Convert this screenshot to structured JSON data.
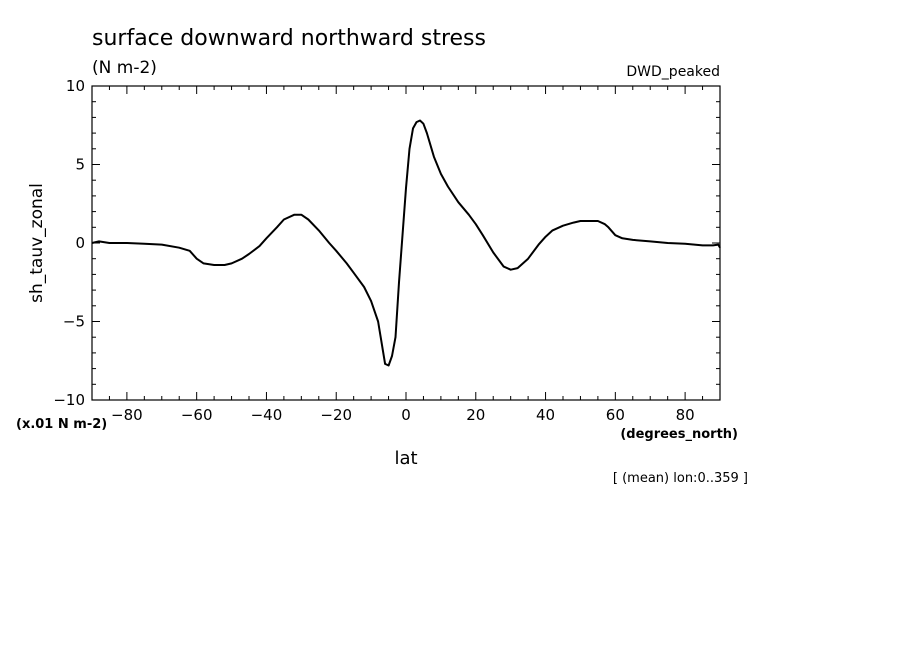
{
  "title": "surface downward northward stress",
  "units": "(N m-2)",
  "tag": "DWD_peaked",
  "footnote": "[ (mean) lon:0..359 ]",
  "chart_data": {
    "type": "line",
    "title": "surface downward northward stress",
    "xlabel": "lat",
    "ylabel": "sh_tauv_zonal",
    "x_units": "(degrees_north)",
    "y_units": "(x.01 N m-2)",
    "xlim": [
      -90,
      90
    ],
    "ylim": [
      -10,
      10
    ],
    "xticks": [
      -80,
      -60,
      -40,
      -20,
      0,
      20,
      40,
      60,
      80
    ],
    "yticks": [
      -10,
      -5,
      0,
      5,
      10
    ],
    "grid": false,
    "series": [
      {
        "color": "#000000",
        "x": [
          -90,
          -88,
          -85,
          -80,
          -75,
          -70,
          -65,
          -62,
          -60,
          -58,
          -55,
          -52,
          -50,
          -47,
          -45,
          -42,
          -40,
          -37,
          -35,
          -32,
          -30,
          -28,
          -25,
          -22,
          -20,
          -17,
          -15,
          -12,
          -10,
          -8,
          -6,
          -5,
          -4,
          -3,
          -2,
          -1,
          0,
          1,
          2,
          3,
          4,
          5,
          6,
          8,
          10,
          12,
          15,
          18,
          20,
          22,
          25,
          28,
          30,
          32,
          35,
          38,
          40,
          42,
          45,
          48,
          50,
          53,
          55,
          57,
          58,
          60,
          62,
          65,
          70,
          75,
          80,
          85,
          88,
          89.5,
          90
        ],
        "y": [
          0.0,
          0.1,
          0.0,
          0.0,
          -0.05,
          -0.1,
          -0.3,
          -0.5,
          -1.0,
          -1.3,
          -1.4,
          -1.4,
          -1.3,
          -1.0,
          -0.7,
          -0.2,
          0.3,
          1.0,
          1.5,
          1.8,
          1.8,
          1.5,
          0.8,
          0.0,
          -0.5,
          -1.3,
          -1.9,
          -2.8,
          -3.7,
          -5.0,
          -7.7,
          -7.8,
          -7.2,
          -6.0,
          -2.5,
          0.5,
          3.5,
          6.0,
          7.3,
          7.7,
          7.8,
          7.6,
          7.0,
          5.5,
          4.4,
          3.6,
          2.6,
          1.8,
          1.2,
          0.5,
          -0.6,
          -1.5,
          -1.7,
          -1.6,
          -1.0,
          -0.1,
          0.4,
          0.8,
          1.1,
          1.3,
          1.4,
          1.4,
          1.4,
          1.2,
          1.0,
          0.5,
          0.3,
          0.2,
          0.1,
          0.0,
          -0.05,
          -0.15,
          -0.15,
          -0.1,
          -0.3
        ]
      }
    ]
  }
}
